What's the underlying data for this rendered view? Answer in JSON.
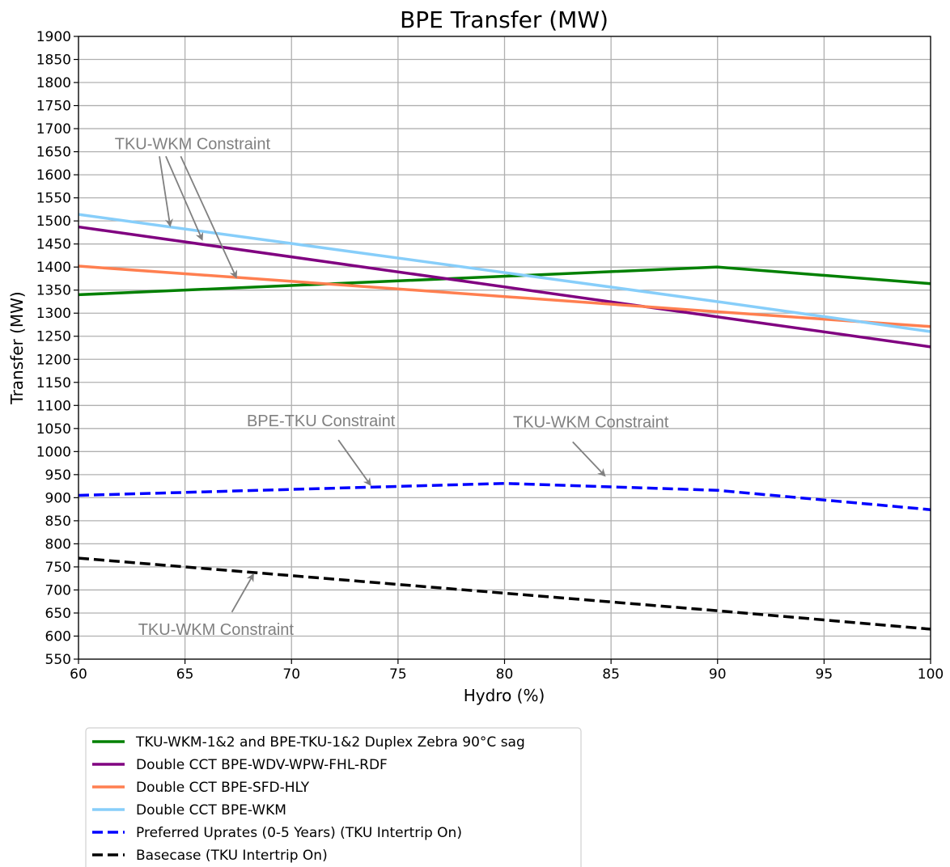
{
  "chart_data": {
    "type": "line",
    "title": "BPE Transfer (MW)",
    "xlabel": "Hydro (%)",
    "ylabel": "Transfer (MW)",
    "xlim": [
      60,
      100
    ],
    "ylim": [
      550,
      1900
    ],
    "xticks": [
      60,
      65,
      70,
      75,
      80,
      85,
      90,
      95,
      100
    ],
    "yticks": [
      550,
      600,
      650,
      700,
      750,
      800,
      850,
      900,
      950,
      1000,
      1050,
      1100,
      1150,
      1200,
      1250,
      1300,
      1350,
      1400,
      1450,
      1500,
      1550,
      1600,
      1650,
      1700,
      1750,
      1800,
      1850,
      1900
    ],
    "grid": true,
    "legend_position": "below",
    "series": [
      {
        "name": "TKU-WKM-1&2 and BPE-TKU-1&2 Duplex Zebra 90°C sag",
        "color": "#008000",
        "dash": "solid",
        "x": [
          60,
          90,
          100
        ],
        "y": [
          1340,
          1400,
          1364
        ]
      },
      {
        "name": "Double CCT BPE-WDV-WPW-FHL-RDF",
        "color": "#800080",
        "dash": "solid",
        "x": [
          60,
          90,
          100
        ],
        "y": [
          1487,
          1292,
          1227
        ]
      },
      {
        "name": "Double CCT BPE-SFD-HLY",
        "color": "#ff7f50",
        "dash": "solid",
        "x": [
          60,
          90,
          100
        ],
        "y": [
          1402,
          1303,
          1271
        ]
      },
      {
        "name": "Double CCT BPE-WKM",
        "color": "#87cefa",
        "dash": "solid",
        "x": [
          60,
          90,
          100
        ],
        "y": [
          1514,
          1325,
          1260
        ]
      },
      {
        "name": "Preferred Uprates (0-5 Years) (TKU Intertrip On)",
        "color": "#0000ff",
        "dash": "dashed",
        "x": [
          60,
          80,
          90,
          100
        ],
        "y": [
          905,
          931,
          916,
          874
        ]
      },
      {
        "name": "Basecase (TKU Intertrip On)",
        "color": "#000000",
        "dash": "dashed",
        "x": [
          60,
          90,
          100
        ],
        "y": [
          769,
          655,
          615
        ]
      }
    ],
    "annotations": [
      {
        "text": "TKU-WKM Constraint",
        "tx": 61.7,
        "ty": 1655,
        "color": "#808080",
        "arrows": [
          [
            64.3,
            1490
          ],
          [
            65.8,
            1460
          ],
          [
            67.4,
            1378
          ]
        ],
        "from": [
          [
            63.8,
            1640
          ],
          [
            64.1,
            1640
          ],
          [
            64.8,
            1640
          ]
        ]
      },
      {
        "text": "BPE-TKU Constraint",
        "tx": 67.9,
        "ty": 1055,
        "color": "#808080",
        "arrows": [
          [
            73.7,
            928
          ]
        ],
        "from": [
          [
            72.2,
            1025
          ]
        ]
      },
      {
        "text": "TKU-WKM Constraint",
        "tx": 80.4,
        "ty": 1052,
        "color": "#808080",
        "arrows": [
          [
            84.7,
            948
          ]
        ],
        "from": [
          [
            83.2,
            1021
          ]
        ]
      },
      {
        "text": "TKU-WKM Constraint",
        "tx": 62.8,
        "ty": 603,
        "color": "#808080",
        "arrows": [
          [
            68.2,
            733
          ]
        ],
        "from": [
          [
            67.2,
            652
          ]
        ]
      }
    ]
  }
}
